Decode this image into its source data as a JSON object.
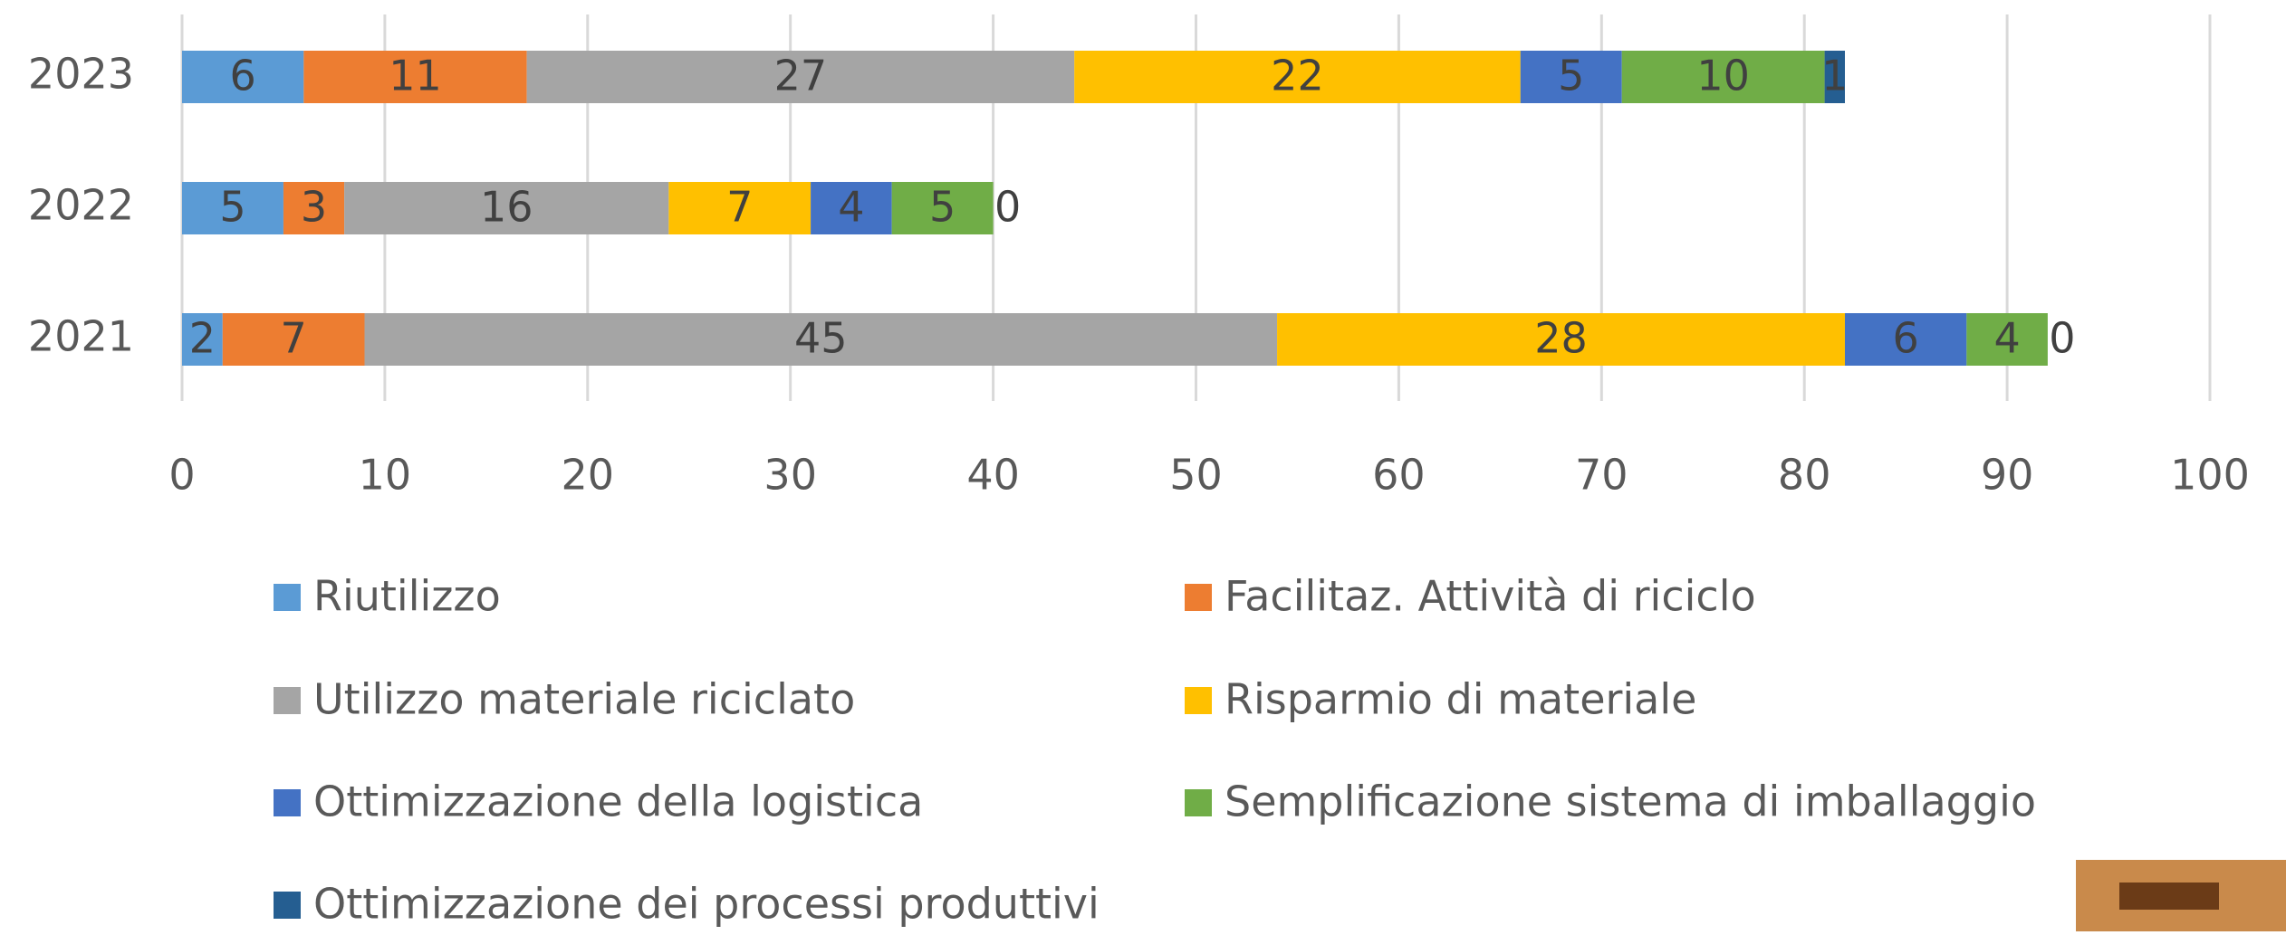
{
  "chart_data": {
    "type": "stacked_bar_horizontal",
    "categories": [
      "2023",
      "2022",
      "2021"
    ],
    "series": [
      {
        "name": "Riutilizzo",
        "color": "#5b9bd5",
        "values": [
          6,
          5,
          2
        ]
      },
      {
        "name": "Facilitaz. Attività di riciclo",
        "color": "#ed7d31",
        "values": [
          11,
          3,
          7
        ]
      },
      {
        "name": "Utilizzo materiale riciclato",
        "color": "#a5a5a5",
        "values": [
          27,
          16,
          45
        ]
      },
      {
        "name": "Risparmio di materiale",
        "color": "#ffc000",
        "values": [
          22,
          7,
          28
        ]
      },
      {
        "name": "Ottimizzazione della logistica",
        "color": "#4472c4",
        "values": [
          5,
          4,
          6
        ]
      },
      {
        "name": "Semplificazione sistema di imballaggio",
        "color": "#70ad47",
        "values": [
          10,
          5,
          4
        ]
      },
      {
        "name": "Ottimizzazione dei processi produttivi",
        "color": "#255e91",
        "values": [
          1,
          0,
          0
        ]
      }
    ],
    "xlim": [
      0,
      100
    ],
    "xticks": [
      0,
      10,
      20,
      30,
      40,
      50,
      60,
      70,
      80,
      90,
      100
    ],
    "grid": true,
    "legend": "bottom"
  }
}
